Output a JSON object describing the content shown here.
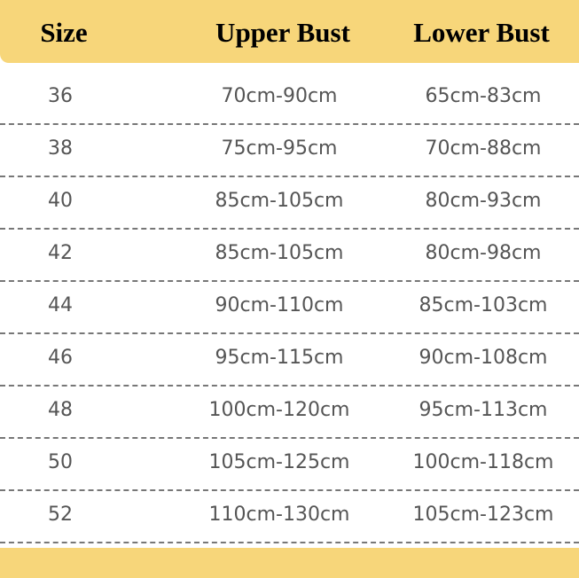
{
  "colors": {
    "header_bg": "#F7D67A",
    "text": "#555555",
    "divider": "#777777"
  },
  "table": {
    "headers": [
      "Size",
      "Upper Bust",
      "Lower Bust"
    ],
    "rows": [
      [
        "36",
        "70cm-90cm",
        "65cm-83cm"
      ],
      [
        "38",
        "75cm-95cm",
        "70cm-88cm"
      ],
      [
        "40",
        "85cm-105cm",
        "80cm-93cm"
      ],
      [
        "42",
        "85cm-105cm",
        "80cm-98cm"
      ],
      [
        "44",
        "90cm-110cm",
        "85cm-103cm"
      ],
      [
        "46",
        "95cm-115cm",
        "90cm-108cm"
      ],
      [
        "48",
        "100cm-120cm",
        "95cm-113cm"
      ],
      [
        "50",
        "105cm-125cm",
        "100cm-118cm"
      ],
      [
        "52",
        "110cm-130cm",
        "105cm-123cm"
      ]
    ]
  }
}
